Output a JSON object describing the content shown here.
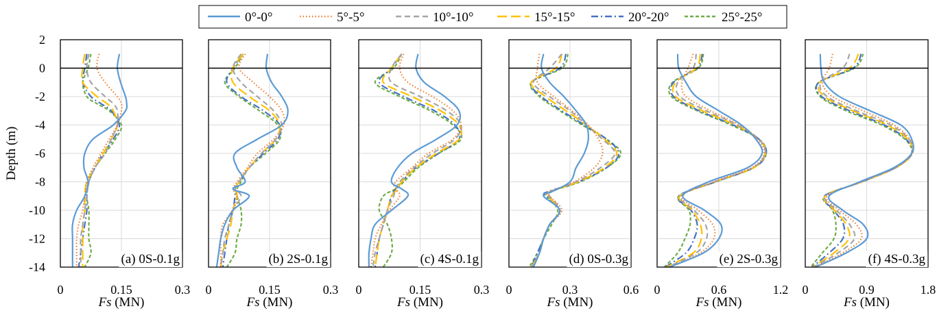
{
  "figure": {
    "ylabel": "Depth (m)",
    "xlabel_symbol": "Fs",
    "xlabel_unit": " (MN)",
    "legend_position": "top-center"
  },
  "legend": [
    {
      "label": "0°-0°",
      "color": "#5B9BD5",
      "dash": "solid"
    },
    {
      "label": "5°-5°",
      "color": "#ED7D31",
      "dash": "dotted"
    },
    {
      "label": "10°-10°",
      "color": "#A5A5A5",
      "dash": "dashed"
    },
    {
      "label": "15°-15°",
      "color": "#FFC000",
      "dash": "long-dash"
    },
    {
      "label": "20°-20°",
      "color": "#4472C4",
      "dash": "dash-dot"
    },
    {
      "label": "25°-25°",
      "color": "#70AD47",
      "dash": "short-dash"
    }
  ],
  "chart_data": [
    {
      "type": "line",
      "title": "(a) 0S-0.1g",
      "xlabel": "Fs (MN)",
      "ylabel": "Depth (m)",
      "xlim": [
        0,
        0.3
      ],
      "ylim": [
        -14,
        2
      ],
      "xticks": [
        "0",
        "0.15",
        "0.3"
      ],
      "xtick_values": [
        0,
        0.15,
        0.3
      ],
      "yticks": [
        2,
        0,
        -2,
        -4,
        -6,
        -8,
        -10,
        -12,
        -14
      ],
      "grid": true,
      "depth": [
        1,
        0,
        -1,
        -2,
        -2.5,
        -3,
        -4,
        -5,
        -6,
        -7,
        -8,
        -9,
        -10,
        -11,
        -12,
        -13,
        -14
      ],
      "series": [
        {
          "name": "0°-0°",
          "values": [
            0.145,
            0.14,
            0.148,
            0.16,
            0.163,
            0.16,
            0.13,
            0.08,
            0.06,
            0.058,
            0.068,
            0.06,
            0.04,
            0.03,
            0.03,
            0.03,
            0.03
          ]
        },
        {
          "name": "5°-5°",
          "values": [
            0.095,
            0.09,
            0.11,
            0.14,
            0.15,
            0.15,
            0.14,
            0.12,
            0.1,
            0.08,
            0.065,
            0.06,
            0.055,
            0.045,
            0.04,
            0.04,
            0.04
          ]
        },
        {
          "name": "10°-10°",
          "values": [
            0.07,
            0.065,
            0.075,
            0.11,
            0.13,
            0.14,
            0.14,
            0.125,
            0.11,
            0.085,
            0.07,
            0.065,
            0.06,
            0.055,
            0.05,
            0.05,
            0.05
          ]
        },
        {
          "name": "15°-15°",
          "values": [
            0.06,
            0.055,
            0.055,
            0.09,
            0.115,
            0.13,
            0.14,
            0.125,
            0.105,
            0.085,
            0.065,
            0.06,
            0.06,
            0.055,
            0.055,
            0.055,
            0.055
          ]
        },
        {
          "name": "20°-20°",
          "values": [
            0.065,
            0.06,
            0.055,
            0.075,
            0.1,
            0.125,
            0.145,
            0.13,
            0.105,
            0.085,
            0.07,
            0.065,
            0.065,
            0.06,
            0.055,
            0.05,
            0.045
          ]
        },
        {
          "name": "25°-25°",
          "values": [
            0.075,
            0.068,
            0.055,
            0.065,
            0.09,
            0.12,
            0.15,
            0.135,
            0.11,
            0.085,
            0.07,
            0.065,
            0.07,
            0.07,
            0.07,
            0.075,
            0.06
          ]
        }
      ]
    },
    {
      "type": "line",
      "title": "(b) 2S-0.1g",
      "xlabel": "Fs (MN)",
      "ylabel": "Depth (m)",
      "xlim": [
        0,
        0.3
      ],
      "ylim": [
        -14,
        2
      ],
      "xticks": [
        "0",
        "0.15",
        "0.3"
      ],
      "xtick_values": [
        0,
        0.15,
        0.3
      ],
      "yticks": [
        2,
        0,
        -2,
        -4,
        -6,
        -8,
        -10,
        -12,
        -14
      ],
      "grid": true,
      "depth": [
        1,
        0,
        -1,
        -2,
        -3,
        -4,
        -5,
        -6,
        -7,
        -8,
        -8.5,
        -9,
        -10,
        -11,
        -12,
        -13,
        -14
      ],
      "series": [
        {
          "name": "0°-0°",
          "values": [
            0.145,
            0.142,
            0.155,
            0.18,
            0.195,
            0.18,
            0.12,
            0.065,
            0.07,
            0.09,
            0.06,
            0.1,
            0.06,
            0.04,
            0.03,
            0.025,
            0.02
          ]
        },
        {
          "name": "5°-5°",
          "values": [
            0.09,
            0.075,
            0.11,
            0.15,
            0.18,
            0.185,
            0.16,
            0.12,
            0.095,
            0.07,
            0.06,
            0.07,
            0.06,
            0.035,
            0.03,
            0.03,
            0.03
          ]
        },
        {
          "name": "10°-10°",
          "values": [
            0.08,
            0.06,
            0.08,
            0.12,
            0.16,
            0.18,
            0.165,
            0.13,
            0.1,
            0.075,
            0.065,
            0.08,
            0.06,
            0.05,
            0.04,
            0.035,
            0.03
          ]
        },
        {
          "name": "15°-15°",
          "values": [
            0.085,
            0.06,
            0.06,
            0.1,
            0.15,
            0.175,
            0.165,
            0.13,
            0.1,
            0.075,
            0.065,
            0.07,
            0.06,
            0.055,
            0.045,
            0.035,
            0.03
          ]
        },
        {
          "name": "20°-20°",
          "values": [
            0.085,
            0.06,
            0.045,
            0.08,
            0.135,
            0.175,
            0.17,
            0.135,
            0.1,
            0.075,
            0.065,
            0.065,
            0.06,
            0.05,
            0.045,
            0.04,
            0.035
          ]
        },
        {
          "name": "25°-25°",
          "values": [
            0.085,
            0.065,
            0.04,
            0.075,
            0.125,
            0.17,
            0.175,
            0.14,
            0.1,
            0.08,
            0.07,
            0.07,
            0.08,
            0.08,
            0.07,
            0.065,
            0.045
          ]
        }
      ]
    },
    {
      "type": "line",
      "title": "(c) 4S-0.1g",
      "xlabel": "Fs (MN)",
      "ylabel": "Depth (m)",
      "xlim": [
        0,
        0.3
      ],
      "ylim": [
        -14,
        2
      ],
      "xticks": [
        "0",
        "0.15",
        "0.3"
      ],
      "xtick_values": [
        0,
        0.15,
        0.3
      ],
      "yticks": [
        2,
        0,
        -2,
        -4,
        -6,
        -8,
        -10,
        -12,
        -14
      ],
      "grid": true,
      "depth": [
        1,
        0,
        -1,
        -2,
        -3,
        -4,
        -5,
        -6,
        -7,
        -8,
        -8.5,
        -9,
        -10,
        -11,
        -12,
        -13,
        -14
      ],
      "series": [
        {
          "name": "0°-0°",
          "values": [
            0.145,
            0.14,
            0.16,
            0.21,
            0.245,
            0.24,
            0.19,
            0.13,
            0.095,
            0.08,
            0.105,
            0.12,
            0.08,
            0.04,
            0.03,
            0.025,
            0.025
          ]
        },
        {
          "name": "5°-5°",
          "values": [
            0.11,
            0.1,
            0.12,
            0.18,
            0.23,
            0.25,
            0.23,
            0.17,
            0.13,
            0.09,
            0.09,
            0.1,
            0.075,
            0.055,
            0.04,
            0.035,
            0.03
          ]
        },
        {
          "name": "10°-10°",
          "values": [
            0.105,
            0.08,
            0.08,
            0.15,
            0.215,
            0.25,
            0.235,
            0.18,
            0.135,
            0.1,
            0.09,
            0.085,
            0.07,
            0.06,
            0.05,
            0.04,
            0.035
          ]
        },
        {
          "name": "15°-15°",
          "values": [
            0.105,
            0.08,
            0.06,
            0.13,
            0.2,
            0.245,
            0.245,
            0.19,
            0.14,
            0.105,
            0.095,
            0.08,
            0.07,
            0.06,
            0.05,
            0.045,
            0.04
          ]
        },
        {
          "name": "20°-20°",
          "values": [
            0.105,
            0.08,
            0.05,
            0.11,
            0.185,
            0.235,
            0.245,
            0.195,
            0.14,
            0.105,
            0.09,
            0.08,
            0.07,
            0.06,
            0.05,
            0.045,
            0.04
          ]
        },
        {
          "name": "25°-25°",
          "values": [
            0.105,
            0.085,
            0.04,
            0.1,
            0.175,
            0.23,
            0.25,
            0.195,
            0.145,
            0.11,
            0.09,
            0.06,
            0.05,
            0.07,
            0.08,
            0.08,
            0.06
          ]
        }
      ]
    },
    {
      "type": "line",
      "title": "(d) 0S-0.3g",
      "xlabel": "Fs (MN)",
      "ylabel": "Depth (m)",
      "xlim": [
        0,
        0.6
      ],
      "ylim": [
        -14,
        2
      ],
      "xticks": [
        "0",
        "0.3",
        "0.6"
      ],
      "xtick_values": [
        0,
        0.3,
        0.6
      ],
      "yticks": [
        2,
        0,
        -2,
        -4,
        -6,
        -8,
        -10,
        -12,
        -14
      ],
      "grid": true,
      "depth": [
        1,
        0,
        -1,
        -2,
        -3,
        -4,
        -5,
        -6,
        -7,
        -8,
        -8.7,
        -9,
        -10,
        -11,
        -12,
        -13,
        -14
      ],
      "series": [
        {
          "name": "0°-0°",
          "values": [
            0.17,
            0.16,
            0.2,
            0.27,
            0.33,
            0.38,
            0.39,
            0.37,
            0.33,
            0.3,
            0.21,
            0.17,
            0.25,
            0.2,
            0.17,
            0.15,
            0.12
          ]
        },
        {
          "name": "5°-5°",
          "values": [
            0.15,
            0.14,
            0.14,
            0.22,
            0.31,
            0.39,
            0.44,
            0.46,
            0.42,
            0.32,
            0.2,
            0.2,
            0.26,
            0.2,
            0.17,
            0.15,
            0.12
          ]
        },
        {
          "name": "10°-10°",
          "values": [
            0.26,
            0.2,
            0.12,
            0.2,
            0.3,
            0.38,
            0.46,
            0.52,
            0.45,
            0.33,
            0.2,
            0.2,
            0.25,
            0.2,
            0.17,
            0.15,
            0.11
          ]
        },
        {
          "name": "15°-15°",
          "values": [
            0.26,
            0.23,
            0.11,
            0.18,
            0.28,
            0.38,
            0.47,
            0.53,
            0.47,
            0.34,
            0.2,
            0.19,
            0.25,
            0.2,
            0.17,
            0.15,
            0.11
          ]
        },
        {
          "name": "20°-20°",
          "values": [
            0.28,
            0.25,
            0.11,
            0.16,
            0.26,
            0.37,
            0.48,
            0.54,
            0.48,
            0.34,
            0.19,
            0.18,
            0.25,
            0.2,
            0.17,
            0.14,
            0.11
          ]
        },
        {
          "name": "25°-25°",
          "values": [
            0.29,
            0.26,
            0.11,
            0.15,
            0.25,
            0.36,
            0.48,
            0.55,
            0.48,
            0.35,
            0.2,
            0.19,
            0.24,
            0.21,
            0.17,
            0.14,
            0.1
          ]
        }
      ]
    },
    {
      "type": "line",
      "title": "(e) 2S-0.3g",
      "xlabel": "Fs (MN)",
      "ylabel": "Depth (m)",
      "xlim": [
        0,
        1.2
      ],
      "ylim": [
        -14,
        2
      ],
      "xticks": [
        "0",
        "0.6",
        "1.2"
      ],
      "xtick_values": [
        0,
        0.6,
        1.2
      ],
      "yticks": [
        2,
        0,
        -2,
        -4,
        -6,
        -8,
        -10,
        -12,
        -14
      ],
      "grid": true,
      "depth": [
        1,
        0,
        -1,
        -2,
        -3,
        -4,
        -5,
        -6,
        -7,
        -8,
        -9,
        -10,
        -11,
        -12,
        -13,
        -14
      ],
      "series": [
        {
          "name": "0°-0°",
          "values": [
            0.2,
            0.21,
            0.28,
            0.38,
            0.6,
            0.82,
            0.96,
            1.02,
            0.88,
            0.5,
            0.25,
            0.46,
            0.62,
            0.6,
            0.45,
            0.12
          ]
        },
        {
          "name": "5°-5°",
          "values": [
            0.35,
            0.3,
            0.24,
            0.28,
            0.52,
            0.8,
            0.98,
            1.04,
            0.92,
            0.55,
            0.24,
            0.4,
            0.54,
            0.55,
            0.42,
            0.12
          ]
        },
        {
          "name": "10°-10°",
          "values": [
            0.38,
            0.35,
            0.2,
            0.22,
            0.48,
            0.78,
            0.99,
            1.05,
            0.93,
            0.56,
            0.23,
            0.36,
            0.47,
            0.48,
            0.38,
            0.1
          ]
        },
        {
          "name": "15°-15°",
          "values": [
            0.42,
            0.38,
            0.18,
            0.18,
            0.44,
            0.76,
            0.99,
            1.05,
            0.94,
            0.56,
            0.22,
            0.34,
            0.42,
            0.43,
            0.35,
            0.09
          ]
        },
        {
          "name": "20°-20°",
          "values": [
            0.44,
            0.39,
            0.16,
            0.16,
            0.41,
            0.74,
            0.99,
            1.06,
            0.94,
            0.57,
            0.21,
            0.33,
            0.39,
            0.36,
            0.28,
            0.08
          ]
        },
        {
          "name": "25°-25°",
          "values": [
            0.45,
            0.4,
            0.15,
            0.14,
            0.39,
            0.72,
            0.99,
            1.06,
            0.94,
            0.57,
            0.21,
            0.31,
            0.32,
            0.27,
            0.2,
            0.07
          ]
        }
      ]
    },
    {
      "type": "line",
      "title": "(f) 4S-0.3g",
      "xlabel": "Fs (MN)",
      "ylabel": "Depth (m)",
      "xlim": [
        0,
        1.8
      ],
      "ylim": [
        -14,
        2
      ],
      "xticks": [
        "0",
        "0.9",
        "1.8"
      ],
      "xtick_values": [
        0,
        0.9,
        1.8
      ],
      "yticks": [
        2,
        0,
        -2,
        -4,
        -6,
        -8,
        -10,
        -12,
        -14
      ],
      "grid": true,
      "depth": [
        1,
        0,
        -1,
        -2,
        -3,
        -4,
        -5,
        -6,
        -7,
        -8,
        -9,
        -10,
        -11,
        -12,
        -13,
        -14
      ],
      "series": [
        {
          "name": "0°-0°",
          "values": [
            0.22,
            0.23,
            0.28,
            0.5,
            0.95,
            1.4,
            1.56,
            1.56,
            1.3,
            0.8,
            0.35,
            0.55,
            0.85,
            0.9,
            0.6,
            0.15
          ]
        },
        {
          "name": "5°-5°",
          "values": [
            0.4,
            0.35,
            0.25,
            0.4,
            0.85,
            1.3,
            1.53,
            1.57,
            1.32,
            0.82,
            0.32,
            0.5,
            0.75,
            0.82,
            0.55,
            0.13
          ]
        },
        {
          "name": "10°-10°",
          "values": [
            0.65,
            0.55,
            0.23,
            0.32,
            0.75,
            1.25,
            1.52,
            1.57,
            1.33,
            0.83,
            0.3,
            0.46,
            0.65,
            0.72,
            0.48,
            0.12
          ]
        },
        {
          "name": "15°-15°",
          "values": [
            0.78,
            0.65,
            0.22,
            0.28,
            0.7,
            1.2,
            1.5,
            1.57,
            1.33,
            0.83,
            0.29,
            0.43,
            0.6,
            0.64,
            0.42,
            0.11
          ]
        },
        {
          "name": "20°-20°",
          "values": [
            0.82,
            0.7,
            0.2,
            0.24,
            0.65,
            1.16,
            1.48,
            1.56,
            1.32,
            0.83,
            0.28,
            0.42,
            0.56,
            0.55,
            0.35,
            0.1
          ]
        },
        {
          "name": "25°-25°",
          "values": [
            0.85,
            0.72,
            0.2,
            0.22,
            0.6,
            1.12,
            1.46,
            1.56,
            1.32,
            0.83,
            0.28,
            0.4,
            0.45,
            0.42,
            0.25,
            0.08
          ]
        }
      ]
    }
  ]
}
